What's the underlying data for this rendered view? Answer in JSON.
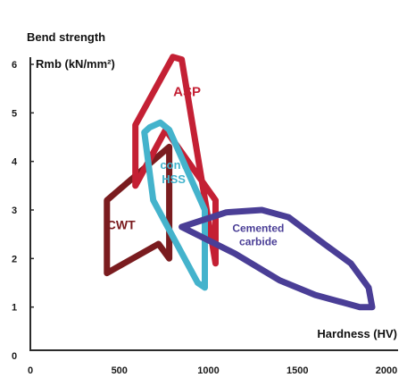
{
  "chart_data": {
    "type": "area",
    "title": "Bend strength",
    "ylabel": "Rmb (kN/mm²)",
    "xlabel": "Hardness (HV)",
    "xlim": [
      0,
      2000
    ],
    "ylim": [
      0,
      6.5
    ],
    "x_ticks": [
      "0",
      "500",
      "1000",
      "1500",
      "2000"
    ],
    "y_ticks": [
      "0",
      "1",
      "2",
      "3",
      "4",
      "5",
      "6"
    ],
    "grid": false,
    "series": [
      {
        "name": "CWT",
        "color": "#7a1c1f",
        "points": [
          [
            430,
            1.7
          ],
          [
            430,
            3.2
          ],
          [
            780,
            4.3
          ],
          [
            780,
            2.0
          ],
          [
            720,
            2.3
          ],
          [
            430,
            1.7
          ]
        ]
      },
      {
        "name": "ASP",
        "color": "#c42034",
        "points": [
          [
            590,
            3.5
          ],
          [
            590,
            4.75
          ],
          [
            800,
            6.15
          ],
          [
            850,
            6.1
          ],
          [
            1040,
            1.9
          ],
          [
            1040,
            3.2
          ],
          [
            760,
            4.65
          ],
          [
            590,
            3.5
          ]
        ]
      },
      {
        "name": "conv HSS",
        "color": "#44b3cc",
        "points": [
          [
            670,
            4.7
          ],
          [
            730,
            4.8
          ],
          [
            780,
            4.65
          ],
          [
            980,
            3.0
          ],
          [
            980,
            1.4
          ],
          [
            940,
            1.5
          ],
          [
            690,
            3.2
          ],
          [
            640,
            4.6
          ]
        ]
      },
      {
        "name": "Cemented carbide",
        "color": "#4a3e96",
        "points": [
          [
            850,
            2.65
          ],
          [
            1100,
            2.95
          ],
          [
            1300,
            3.0
          ],
          [
            1450,
            2.85
          ],
          [
            1650,
            2.3
          ],
          [
            1800,
            1.9
          ],
          [
            1900,
            1.4
          ],
          [
            1920,
            1.0
          ],
          [
            1850,
            1.0
          ],
          [
            1600,
            1.25
          ],
          [
            1400,
            1.55
          ],
          [
            1150,
            2.1
          ],
          [
            850,
            2.65
          ]
        ]
      }
    ]
  }
}
